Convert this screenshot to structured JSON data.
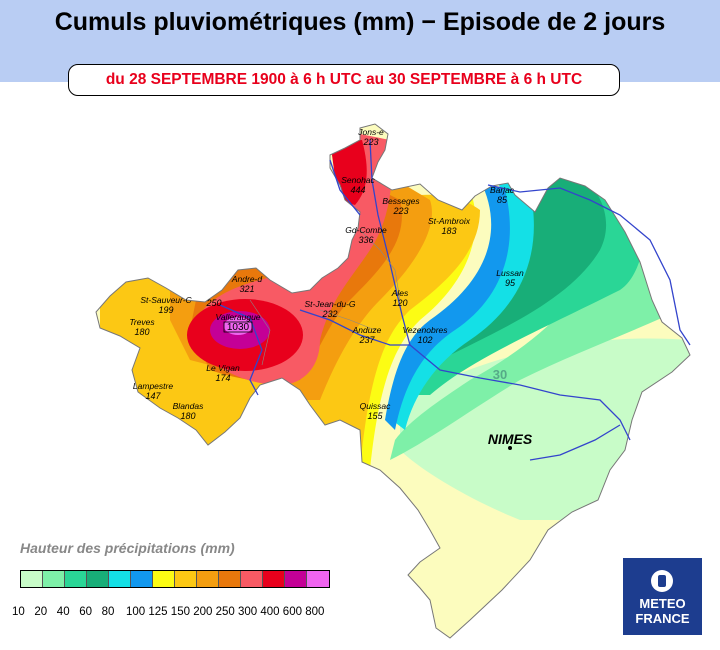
{
  "header": {
    "title": "Cumuls pluviométriques (mm) − Episode de 2 jours",
    "subtitle": "du 28 SEPTEMBRE 1900 à 6 h UTC au 30 SEPTEMBRE à 6 h UTC"
  },
  "map": {
    "city_label": "NIMES",
    "isohyet_label": "30",
    "stations": [
      {
        "name": "Jons-e",
        "value": "223"
      },
      {
        "name": "Senohac",
        "value": "444"
      },
      {
        "name": "Besseges",
        "value": "223"
      },
      {
        "name": "St-Ambroix",
        "value": "183"
      },
      {
        "name": "Barjac",
        "value": "85"
      },
      {
        "name": "Gd-Combe",
        "value": "336"
      },
      {
        "name": "Andre-d",
        "value": "321"
      },
      {
        "name": "St-Sauveur-C",
        "value": "199"
      },
      {
        "name": "Treves",
        "value": "180"
      },
      {
        "name": "Valleraugue",
        "value": "1030"
      },
      {
        "name": "St-Jean-du-G",
        "value": "232"
      },
      {
        "name": "Ales",
        "value": "120"
      },
      {
        "name": "Lussan",
        "value": "95"
      },
      {
        "name": "Anduze",
        "value": "237"
      },
      {
        "name": "Vezenobres",
        "value": "102"
      },
      {
        "name": "Le Vigan",
        "value": "174"
      },
      {
        "name": "Lampestre",
        "value": "147"
      },
      {
        "name": "Blandas",
        "value": "180"
      },
      {
        "name": "Quissac",
        "value": "155"
      },
      {
        "name": "",
        "value": "250"
      }
    ]
  },
  "legend": {
    "title": "Hauteur des précipitations (mm)",
    "colors": [
      "#c8fcc8",
      "#7ef0a8",
      "#2ad696",
      "#18ae78",
      "#14e0e6",
      "#1298ee",
      "#fcfc14",
      "#fcc814",
      "#f49e10",
      "#e8780c",
      "#f85a64",
      "#e8001c",
      "#c40096",
      "#f064f0"
    ],
    "ticks": [
      "10",
      "20",
      "40",
      "60",
      "80",
      "100",
      "125",
      "150",
      "200",
      "250",
      "300",
      "400",
      "600",
      "800"
    ]
  },
  "logo": {
    "line1": "METEO",
    "line2": "FRANCE"
  },
  "colors": {
    "header_bg": "#b9cdf3",
    "subtitle_text": "#e8001c",
    "river": "#3344cc",
    "logo_bg": "#1d3d8f"
  }
}
